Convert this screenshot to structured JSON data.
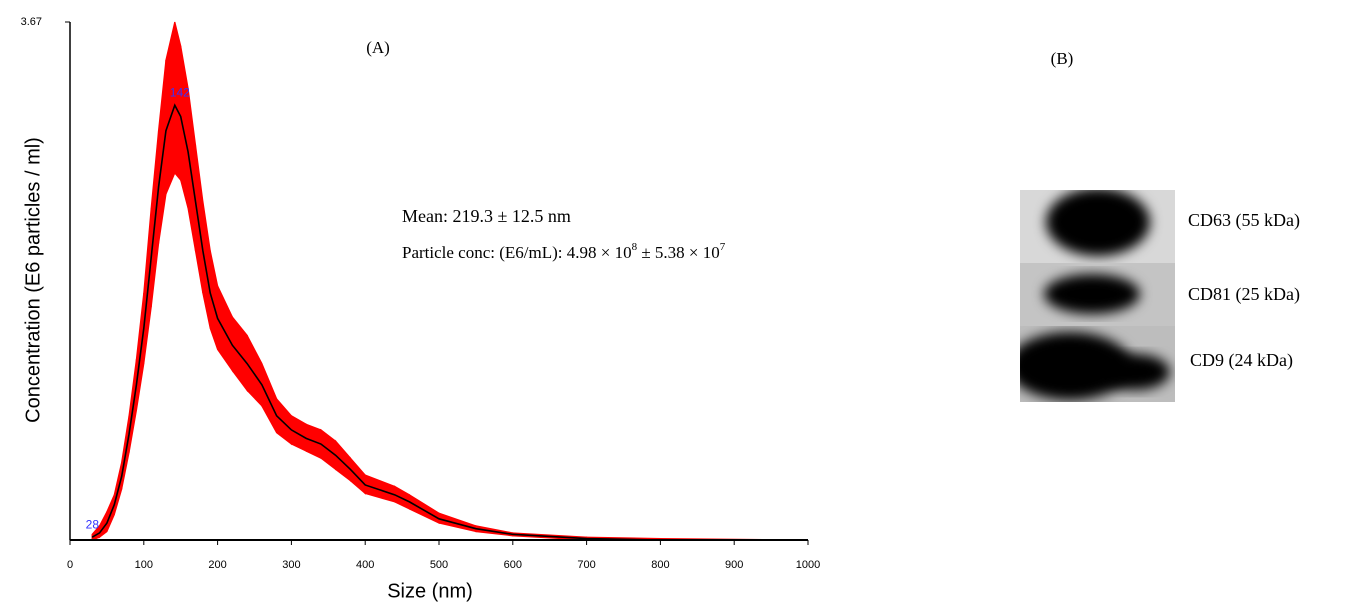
{
  "chart_data": {
    "type": "band-line",
    "panel_label": "(A)",
    "x_label": "Size (nm)",
    "y_label": "Concentration (E6 particles / ml)",
    "x": [
      30,
      40,
      50,
      60,
      70,
      80,
      90,
      100,
      110,
      120,
      130,
      142,
      150,
      160,
      170,
      180,
      190,
      200,
      220,
      240,
      260,
      280,
      300,
      320,
      340,
      360,
      380,
      400,
      440,
      460,
      500,
      550,
      600,
      700,
      800,
      1000
    ],
    "values": [
      0.02,
      0.05,
      0.12,
      0.25,
      0.45,
      0.75,
      1.1,
      1.5,
      2.0,
      2.5,
      2.9,
      3.08,
      3.0,
      2.75,
      2.4,
      2.05,
      1.75,
      1.57,
      1.38,
      1.25,
      1.1,
      0.88,
      0.78,
      0.72,
      0.68,
      0.6,
      0.5,
      0.39,
      0.32,
      0.27,
      0.15,
      0.08,
      0.04,
      0.01,
      0,
      0
    ],
    "band": {
      "upper": [
        0.04,
        0.1,
        0.2,
        0.32,
        0.55,
        0.88,
        1.28,
        1.75,
        2.35,
        2.9,
        3.4,
        3.67,
        3.5,
        3.2,
        2.8,
        2.4,
        2.05,
        1.8,
        1.58,
        1.45,
        1.25,
        1.0,
        0.88,
        0.82,
        0.78,
        0.7,
        0.58,
        0.46,
        0.38,
        0.32,
        0.19,
        0.1,
        0.05,
        0.02,
        0.01,
        0
      ],
      "lower": [
        0,
        0.02,
        0.06,
        0.18,
        0.36,
        0.62,
        0.92,
        1.25,
        1.65,
        2.1,
        2.45,
        2.6,
        2.55,
        2.35,
        2.05,
        1.75,
        1.5,
        1.35,
        1.2,
        1.06,
        0.95,
        0.76,
        0.68,
        0.63,
        0.58,
        0.5,
        0.42,
        0.33,
        0.27,
        0.22,
        0.12,
        0.06,
        0.03,
        0,
        0,
        0
      ]
    },
    "color": "#000000",
    "band_color": "#ff0000",
    "xlim": [
      0,
      1000
    ],
    "xticks": [
      0,
      100,
      200,
      300,
      400,
      500,
      600,
      700,
      800,
      900,
      1000
    ],
    "ylim": [
      0,
      3.67
    ],
    "yticks": [
      3.67
    ],
    "annotations": [
      {
        "text": "142",
        "x": 142,
        "y": 3.08
      },
      {
        "text": "28",
        "x": 28,
        "y": 0.02
      }
    ],
    "annotation_color": "#3333ff",
    "stats": {
      "mean": "Mean: 219.3 ± 12.5 nm",
      "conc": [
        "Particle conc: (E6/mL): 4.98 × 10",
        "8",
        " ± 5.38 × 10",
        "7"
      ]
    }
  },
  "blot": {
    "panel_label": "(B)",
    "labels": [
      "CD63 (55 kDa)",
      "CD81 (25 kDa)",
      "CD9 (24 kDa)"
    ]
  }
}
